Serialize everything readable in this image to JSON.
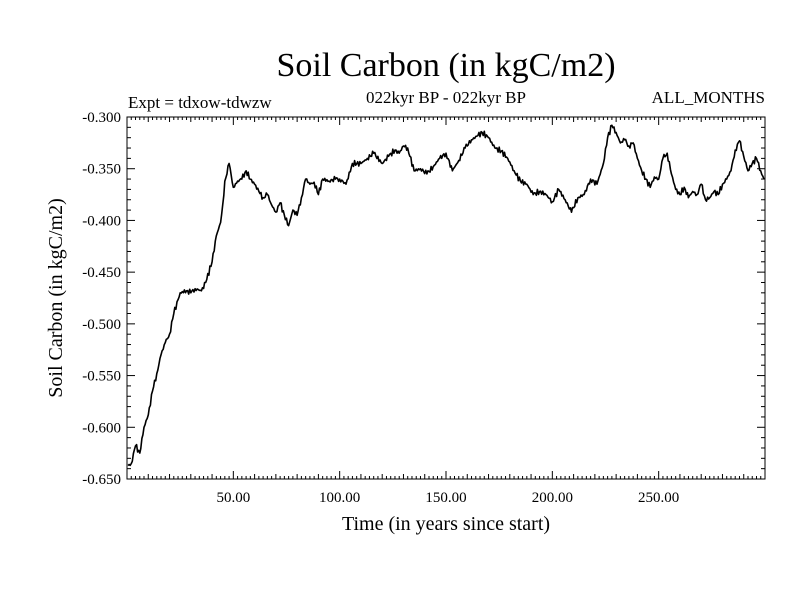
{
  "chart_data": {
    "type": "line",
    "title": "Soil Carbon (in kgC/m2)",
    "subtitle": "022kyr BP - 022kyr BP",
    "left_note": "Expt = tdxow-tdwzw",
    "right_note": "ALL_MONTHS",
    "xlabel": "Time (in years since start)",
    "ylabel": "Soil Carbon (in kgC/m2)",
    "xlim": [
      0,
      300
    ],
    "ylim": [
      -0.65,
      -0.3
    ],
    "xticks": [
      50,
      100,
      150,
      200,
      250
    ],
    "xtick_labels": [
      "50.00",
      "100.00",
      "150.00",
      "200.00",
      "250.00"
    ],
    "yticks": [
      -0.3,
      -0.35,
      -0.4,
      -0.45,
      -0.5,
      -0.55,
      -0.6,
      -0.65
    ],
    "ytick_labels": [
      "-0.300",
      "-0.350",
      "-0.400",
      "-0.450",
      "-0.500",
      "-0.550",
      "-0.600",
      "-0.650"
    ],
    "grid": false,
    "line_color": "#000000",
    "series": [
      {
        "x": [
          0.5,
          2,
          4,
          6,
          8,
          10,
          12,
          14,
          16,
          18,
          20,
          22,
          25,
          28,
          30,
          32,
          35,
          37,
          40,
          42,
          44,
          45,
          46,
          47,
          48,
          50,
          52,
          54,
          56,
          58,
          60,
          62,
          64,
          66,
          68,
          70,
          72,
          74,
          76,
          78,
          80,
          82,
          84,
          86,
          88,
          90,
          92,
          95,
          98,
          100,
          103,
          106,
          110,
          113,
          116,
          120,
          123,
          126,
          128,
          130,
          132,
          135,
          138,
          141,
          144,
          147,
          150,
          153,
          156,
          159,
          162,
          165,
          167,
          170,
          173,
          176,
          179,
          182,
          185,
          188,
          191,
          194,
          197,
          200,
          203,
          206,
          209,
          212,
          215,
          218,
          221,
          224,
          226,
          228,
          230,
          232,
          234,
          236,
          238,
          240,
          242,
          244,
          246,
          248,
          250,
          252,
          254,
          256,
          258,
          260,
          262,
          264,
          266,
          268,
          270,
          272,
          274,
          276,
          278,
          280,
          282,
          284,
          286,
          288,
          290,
          292,
          294,
          296,
          298,
          299.5
        ],
        "y": [
          -0.637,
          -0.635,
          -0.618,
          -0.625,
          -0.6,
          -0.588,
          -0.565,
          -0.548,
          -0.53,
          -0.518,
          -0.51,
          -0.49,
          -0.47,
          -0.468,
          -0.47,
          -0.466,
          -0.468,
          -0.46,
          -0.44,
          -0.415,
          -0.402,
          -0.385,
          -0.362,
          -0.355,
          -0.345,
          -0.368,
          -0.362,
          -0.36,
          -0.352,
          -0.36,
          -0.365,
          -0.372,
          -0.378,
          -0.375,
          -0.385,
          -0.392,
          -0.383,
          -0.395,
          -0.405,
          -0.39,
          -0.395,
          -0.378,
          -0.36,
          -0.365,
          -0.363,
          -0.375,
          -0.36,
          -0.362,
          -0.36,
          -0.36,
          -0.365,
          -0.345,
          -0.345,
          -0.34,
          -0.335,
          -0.345,
          -0.338,
          -0.332,
          -0.335,
          -0.328,
          -0.33,
          -0.352,
          -0.35,
          -0.355,
          -0.348,
          -0.34,
          -0.335,
          -0.352,
          -0.342,
          -0.33,
          -0.322,
          -0.318,
          -0.315,
          -0.32,
          -0.33,
          -0.333,
          -0.34,
          -0.352,
          -0.362,
          -0.365,
          -0.375,
          -0.372,
          -0.375,
          -0.382,
          -0.37,
          -0.38,
          -0.392,
          -0.378,
          -0.375,
          -0.36,
          -0.365,
          -0.345,
          -0.32,
          -0.308,
          -0.315,
          -0.325,
          -0.322,
          -0.328,
          -0.325,
          -0.34,
          -0.352,
          -0.36,
          -0.368,
          -0.358,
          -0.36,
          -0.34,
          -0.335,
          -0.355,
          -0.37,
          -0.375,
          -0.368,
          -0.378,
          -0.372,
          -0.375,
          -0.365,
          -0.38,
          -0.378,
          -0.372,
          -0.375,
          -0.365,
          -0.36,
          -0.352,
          -0.332,
          -0.323,
          -0.338,
          -0.352,
          -0.345,
          -0.34,
          -0.352,
          -0.36
        ]
      }
    ]
  }
}
